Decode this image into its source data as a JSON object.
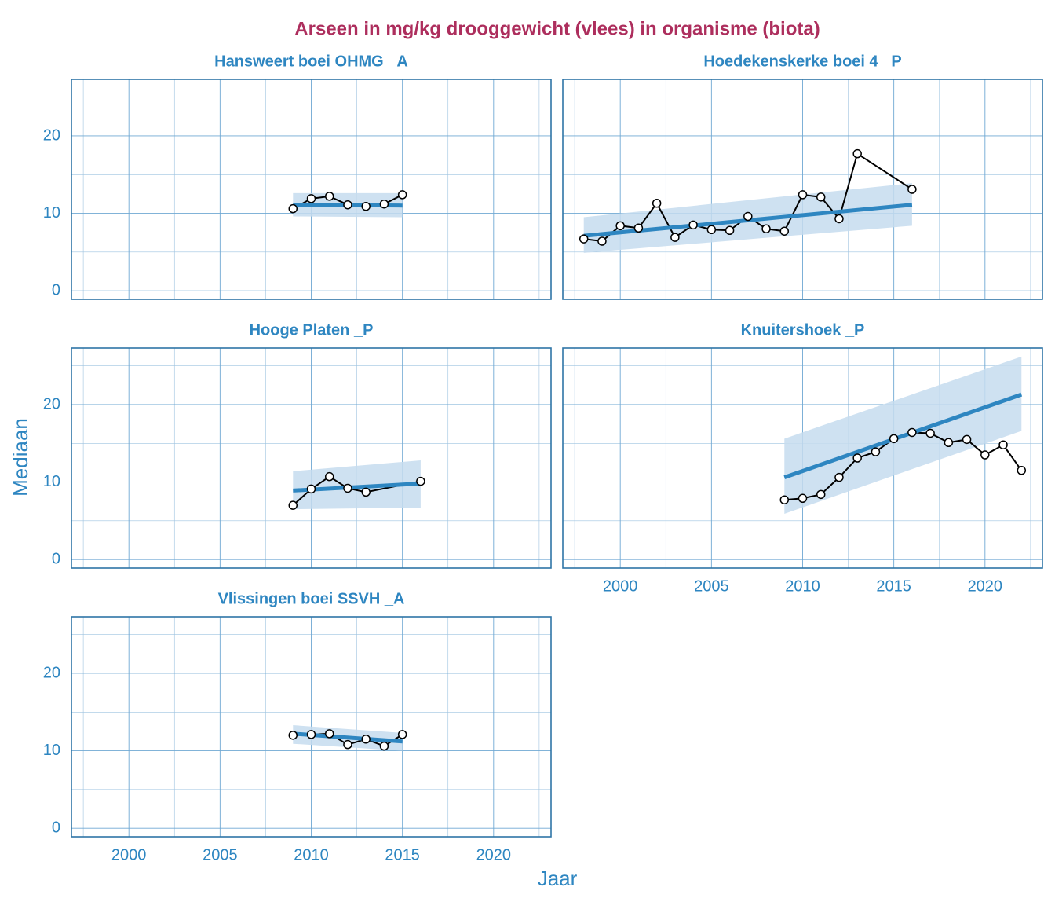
{
  "chart_data": {
    "type": "line",
    "title": "Arseen in mg/kg drooggewicht (vlees) in organisme (biota)",
    "x_label": "Jaar",
    "y_label": "Mediaan",
    "xlim": [
      1996.85,
      2023.15
    ],
    "xticks": [
      2000,
      2005,
      2010,
      2015,
      2020
    ],
    "ylim": [
      -1.1,
      27.3
    ],
    "yticks": [
      0,
      10,
      20
    ],
    "grid": true,
    "point_color": "#000000",
    "trend_color": "#2e86c1",
    "band_color": "#c6dcef",
    "panels": [
      {
        "title": "Hansweert boei OHMG _A",
        "x": [
          2009,
          2010,
          2011,
          2012,
          2013,
          2014,
          2015
        ],
        "values": [
          10.6,
          11.9,
          12.2,
          11.1,
          10.9,
          11.2,
          12.4
        ],
        "trend_x": [
          2009,
          2015
        ],
        "trend_values": [
          11.1,
          11.0
        ],
        "band_lower": [
          9.6,
          9.5
        ],
        "band_upper": [
          12.6,
          12.6
        ]
      },
      {
        "title": "Hoedekenskerke boei 4 _P",
        "x": [
          1998,
          1999,
          2000,
          2001,
          2002,
          2003,
          2004,
          2005,
          2006,
          2007,
          2008,
          2009,
          2010,
          2011,
          2012,
          2013,
          2016
        ],
        "values": [
          6.7,
          6.4,
          8.4,
          8.1,
          11.3,
          6.9,
          8.5,
          7.9,
          7.8,
          9.6,
          8.0,
          7.7,
          12.4,
          12.1,
          9.3,
          17.7,
          13.1
        ],
        "trend_x": [
          1998,
          2016
        ],
        "trend_values": [
          7.1,
          11.1
        ],
        "band_lower": [
          4.9,
          8.4
        ],
        "band_upper": [
          9.5,
          13.9
        ]
      },
      {
        "title": "Hooge Platen _P",
        "x": [
          2009,
          2010,
          2011,
          2012,
          2013,
          2016
        ],
        "values": [
          7.0,
          9.1,
          10.7,
          9.2,
          8.7,
          10.1
        ],
        "trend_x": [
          2009,
          2016
        ],
        "trend_values": [
          8.9,
          9.8
        ],
        "band_lower": [
          6.5,
          6.7
        ],
        "band_upper": [
          11.4,
          12.8
        ]
      },
      {
        "title": "Knuitershoek _P",
        "x": [
          2009,
          2010,
          2011,
          2012,
          2013,
          2014,
          2015,
          2016,
          2017,
          2018,
          2019,
          2020,
          2021,
          2022
        ],
        "values": [
          7.7,
          7.9,
          8.4,
          10.6,
          13.1,
          13.9,
          15.6,
          16.4,
          16.3,
          15.1,
          15.5,
          13.5,
          14.8,
          11.5
        ],
        "trend_x": [
          2009,
          2022
        ],
        "trend_values": [
          10.6,
          21.3
        ],
        "band_lower": [
          5.9,
          16.6
        ],
        "band_upper": [
          15.6,
          26.2
        ]
      },
      {
        "title": "Vlissingen boei SSVH _A",
        "x": [
          2009,
          2010,
          2011,
          2012,
          2013,
          2014,
          2015
        ],
        "values": [
          12.0,
          12.1,
          12.2,
          10.8,
          11.5,
          10.6,
          12.1
        ],
        "trend_x": [
          2009,
          2015
        ],
        "trend_values": [
          12.2,
          11.2
        ],
        "band_lower": [
          10.9,
          10.0
        ],
        "band_upper": [
          13.3,
          12.3
        ]
      }
    ]
  }
}
